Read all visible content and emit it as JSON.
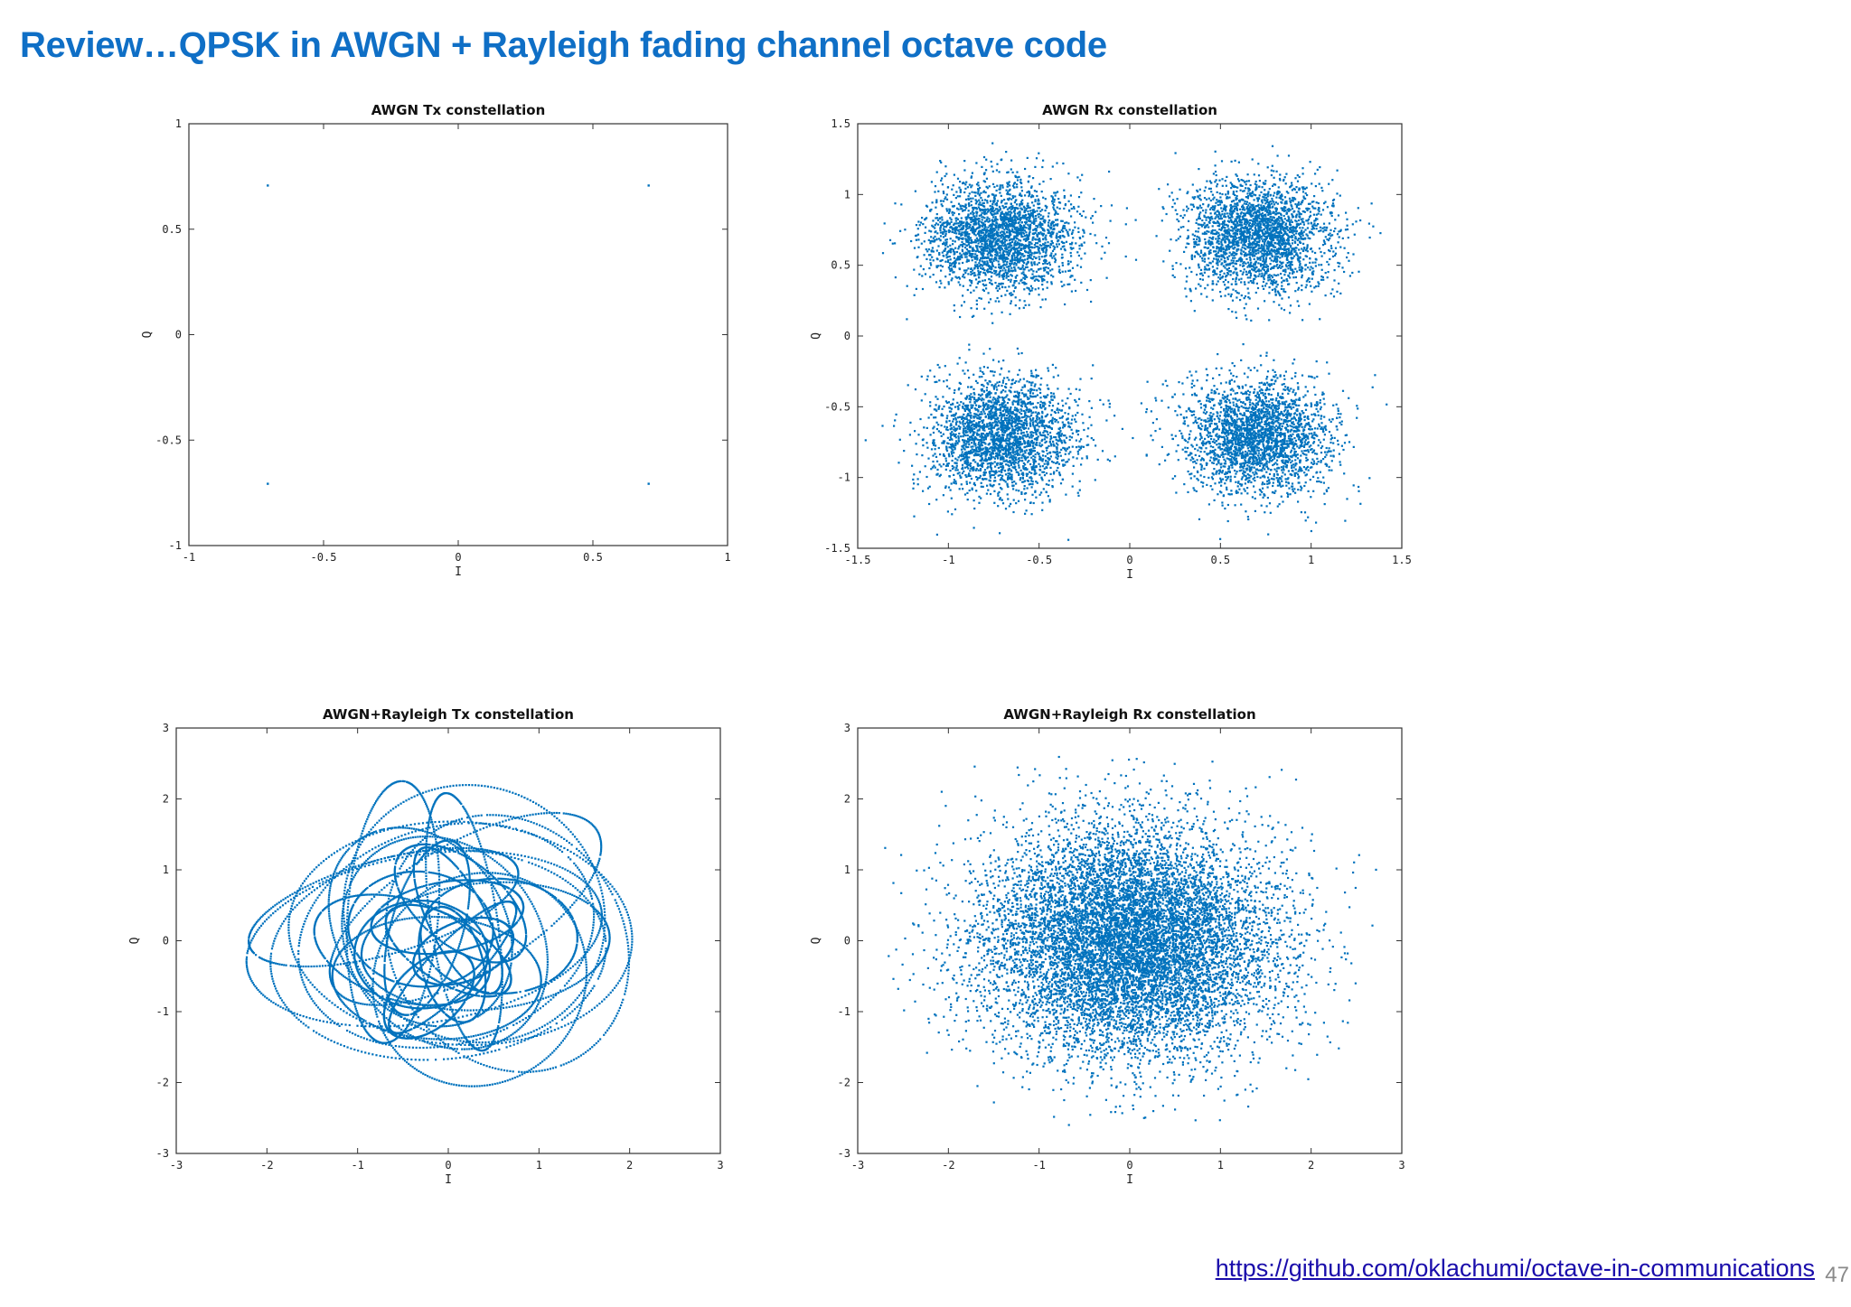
{
  "slide": {
    "title": "Review…QPSK in AWGN + Rayleigh fading channel octave code",
    "link": "https://github.com/oklachumi/octave-in-communications",
    "page_number": "47"
  },
  "colors": {
    "title": "#0F6FC6",
    "points": "#0072BD",
    "link": "#1a0dab",
    "axes": "#333333"
  },
  "chart_data": [
    {
      "type": "scatter",
      "title": "AWGN Tx constellation",
      "xlabel": "I",
      "ylabel": "Q",
      "xlim": [
        -1,
        1
      ],
      "ylim": [
        -1,
        1
      ],
      "xticks": [
        -1,
        -0.5,
        0,
        0.5,
        1
      ],
      "yticks": [
        -1,
        -0.5,
        0,
        0.5,
        1
      ],
      "grid": false,
      "distribution": "points",
      "points": [
        [
          -0.707,
          0.707
        ],
        [
          0.707,
          0.707
        ],
        [
          -0.707,
          -0.707
        ],
        [
          0.707,
          -0.707
        ]
      ]
    },
    {
      "type": "scatter",
      "title": "AWGN Rx constellation",
      "xlabel": "I",
      "ylabel": "Q",
      "xlim": [
        -1.5,
        1.5
      ],
      "ylim": [
        -1.5,
        1.5
      ],
      "xticks": [
        -1.5,
        -1,
        -0.5,
        0,
        0.5,
        1,
        1.5
      ],
      "yticks": [
        -1.5,
        -1,
        -0.5,
        0,
        0.5,
        1,
        1.5
      ],
      "grid": false,
      "distribution": "gaussian_clusters",
      "centers": [
        [
          -0.707,
          0.707
        ],
        [
          0.707,
          0.707
        ],
        [
          -0.707,
          -0.707
        ],
        [
          0.707,
          -0.707
        ]
      ],
      "sigma": 0.2,
      "points_per_center": 2500
    },
    {
      "type": "scatter",
      "title": "AWGN+Rayleigh Tx constellation",
      "xlabel": "I",
      "ylabel": "Q",
      "xlim": [
        -3,
        3
      ],
      "ylim": [
        -3,
        3
      ],
      "xticks": [
        -3,
        -2,
        -1,
        0,
        1,
        2,
        3
      ],
      "yticks": [
        -3,
        -2,
        -1,
        0,
        1,
        2,
        3
      ],
      "grid": false,
      "distribution": "fading_loops",
      "loops": 28,
      "points_per_loop": 260,
      "radius_range": [
        0.6,
        2.0
      ]
    },
    {
      "type": "scatter",
      "title": "AWGN+Rayleigh Rx constellation",
      "xlabel": "I",
      "ylabel": "Q",
      "xlim": [
        -3,
        3
      ],
      "ylim": [
        -3,
        3
      ],
      "xticks": [
        -3,
        -2,
        -1,
        0,
        1,
        2,
        3
      ],
      "yticks": [
        -3,
        -2,
        -1,
        0,
        1,
        2,
        3
      ],
      "grid": false,
      "distribution": "rayleigh_cloud",
      "sigma": 0.8,
      "count": 10000
    }
  ]
}
